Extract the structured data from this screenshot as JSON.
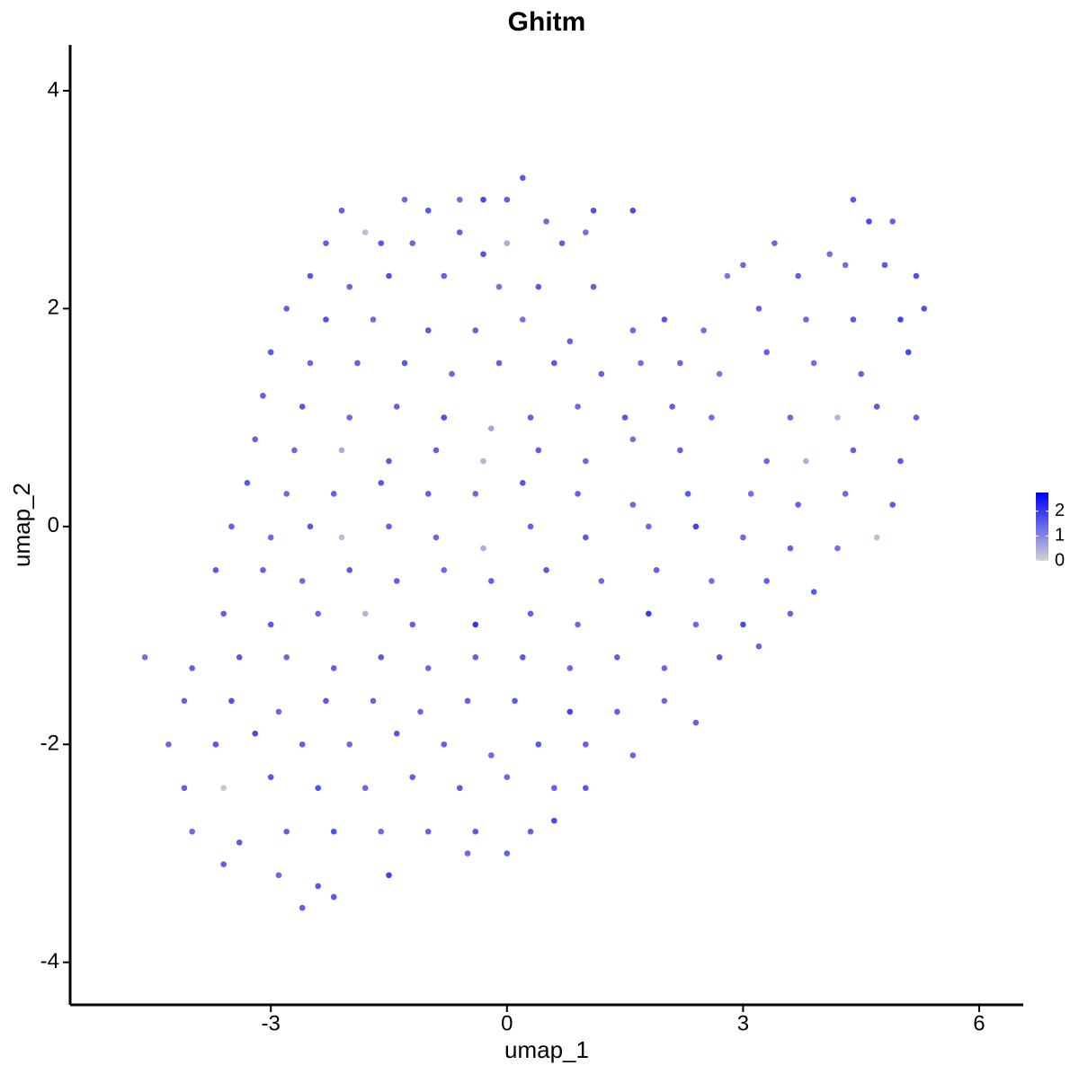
{
  "chart_data": {
    "type": "scatter",
    "title": "Ghitm",
    "x_label": "umap_1",
    "y_label": "umap_2",
    "x": [
      -2.1,
      -1.8,
      -1.3,
      -1.0,
      -0.6,
      -0.3,
      0.0,
      0.2,
      0.5,
      1.1,
      1.6,
      -2.3,
      -1.6,
      -1.2,
      -0.6,
      -0.3,
      0.0,
      0.7,
      1.0,
      4.4,
      4.6,
      4.9,
      3.4,
      4.1,
      -2.5,
      -2.0,
      -1.5,
      -0.8,
      -0.1,
      0.4,
      1.1,
      2.8,
      3.0,
      3.7,
      4.3,
      4.8,
      5.2,
      -2.8,
      -2.3,
      -1.7,
      -1.0,
      -0.4,
      0.2,
      0.8,
      1.6,
      2.0,
      2.5,
      3.2,
      3.8,
      4.4,
      5.0,
      5.3,
      -3.0,
      -2.5,
      -1.9,
      -1.3,
      -0.7,
      -0.1,
      0.6,
      1.2,
      1.7,
      2.2,
      2.7,
      3.3,
      3.9,
      4.5,
      5.1,
      -3.1,
      -2.6,
      -2.0,
      -1.4,
      -0.8,
      -0.2,
      0.3,
      0.9,
      1.5,
      2.1,
      2.6,
      3.6,
      4.2,
      4.7,
      5.2,
      -3.2,
      -2.7,
      -2.1,
      -1.5,
      -0.9,
      -0.3,
      0.4,
      1.0,
      1.6,
      2.2,
      3.3,
      3.8,
      4.4,
      5.0,
      -3.3,
      -2.8,
      -2.2,
      -1.6,
      -1.0,
      -0.4,
      0.2,
      0.9,
      1.6,
      2.3,
      3.1,
      3.7,
      4.3,
      4.9,
      -3.5,
      -3.0,
      -2.5,
      -2.1,
      -1.5,
      -0.9,
      -0.3,
      0.3,
      1.0,
      1.8,
      2.4,
      3.0,
      3.6,
      4.2,
      4.7,
      -3.7,
      -3.1,
      -2.6,
      -2.0,
      -1.4,
      -0.8,
      -0.2,
      0.5,
      1.2,
      1.9,
      2.6,
      3.3,
      3.9,
      -3.6,
      -3.0,
      -2.4,
      -1.8,
      -1.2,
      -0.4,
      0.3,
      0.9,
      1.8,
      2.4,
      3.0,
      3.6,
      -4.6,
      -4.0,
      -3.4,
      -2.8,
      -2.2,
      -1.6,
      -1.0,
      -0.4,
      0.2,
      0.8,
      1.4,
      2.0,
      2.7,
      3.2,
      -4.1,
      -3.5,
      -2.9,
      -2.3,
      -1.7,
      -1.1,
      -0.5,
      0.1,
      0.8,
      1.4,
      2.0,
      2.4,
      -4.3,
      -3.7,
      -3.2,
      -2.6,
      -2.0,
      -1.4,
      -0.8,
      -0.2,
      0.4,
      1.0,
      1.6,
      -4.1,
      -3.6,
      -3.0,
      -2.4,
      -1.8,
      -1.2,
      -0.6,
      0.0,
      0.6,
      1.0,
      -4.0,
      -3.4,
      -2.8,
      -2.2,
      -1.6,
      -1.0,
      -0.4,
      0.3,
      0.6,
      -3.6,
      -2.9,
      -2.4,
      -1.5,
      -0.5,
      0.0,
      -2.6,
      -2.2
    ],
    "y": [
      2.9,
      2.7,
      3.0,
      2.9,
      3.0,
      3.0,
      3.0,
      3.2,
      2.8,
      2.9,
      2.9,
      2.6,
      2.6,
      2.6,
      2.7,
      2.5,
      2.6,
      2.6,
      2.7,
      3.0,
      2.8,
      2.8,
      2.6,
      2.5,
      2.3,
      2.2,
      2.3,
      2.3,
      2.2,
      2.2,
      2.2,
      2.3,
      2.4,
      2.3,
      2.4,
      2.4,
      2.3,
      2.0,
      1.9,
      1.9,
      1.8,
      1.8,
      1.9,
      1.7,
      1.8,
      1.9,
      1.8,
      2.0,
      1.9,
      1.9,
      1.9,
      2.0,
      1.6,
      1.5,
      1.5,
      1.5,
      1.4,
      1.5,
      1.5,
      1.4,
      1.5,
      1.5,
      1.4,
      1.6,
      1.5,
      1.4,
      1.6,
      1.2,
      1.1,
      1.0,
      1.1,
      1.0,
      0.9,
      1.0,
      1.1,
      1.0,
      1.1,
      1.0,
      1.0,
      1.0,
      1.1,
      1.0,
      0.8,
      0.7,
      0.7,
      0.6,
      0.7,
      0.6,
      0.7,
      0.6,
      0.8,
      0.7,
      0.6,
      0.6,
      0.7,
      0.6,
      0.4,
      0.3,
      0.3,
      0.4,
      0.3,
      0.3,
      0.4,
      0.3,
      0.2,
      0.3,
      0.3,
      0.2,
      0.3,
      0.2,
      0.0,
      -0.1,
      0.0,
      -0.1,
      0.0,
      -0.1,
      -0.2,
      0.0,
      -0.1,
      0.0,
      0.0,
      -0.1,
      -0.2,
      -0.2,
      -0.1,
      -0.4,
      -0.4,
      -0.5,
      -0.4,
      -0.5,
      -0.4,
      -0.5,
      -0.4,
      -0.5,
      -0.4,
      -0.5,
      -0.5,
      -0.6,
      -0.8,
      -0.9,
      -0.8,
      -0.8,
      -0.9,
      -0.9,
      -0.8,
      -0.9,
      -0.8,
      -0.9,
      -0.9,
      -0.8,
      -1.2,
      -1.3,
      -1.2,
      -1.2,
      -1.3,
      -1.2,
      -1.3,
      -1.2,
      -1.2,
      -1.3,
      -1.2,
      -1.3,
      -1.2,
      -1.1,
      -1.6,
      -1.6,
      -1.7,
      -1.6,
      -1.6,
      -1.7,
      -1.6,
      -1.6,
      -1.7,
      -1.7,
      -1.6,
      -1.8,
      -2.0,
      -2.0,
      -1.9,
      -2.0,
      -2.0,
      -1.9,
      -2.0,
      -2.1,
      -2.0,
      -2.0,
      -2.1,
      -2.4,
      -2.4,
      -2.3,
      -2.4,
      -2.4,
      -2.3,
      -2.4,
      -2.3,
      -2.4,
      -2.4,
      -2.8,
      -2.9,
      -2.8,
      -2.8,
      -2.8,
      -2.8,
      -2.8,
      -2.8,
      -2.7,
      -3.1,
      -3.2,
      -3.3,
      -3.2,
      -3.0,
      -3.0,
      -3.5,
      -3.4
    ],
    "values": [
      1.5,
      0.3,
      1.4,
      1.6,
      1.3,
      1.8,
      1.5,
      1.6,
      1.4,
      1.7,
      1.8,
      1.5,
      1.6,
      1.4,
      1.5,
      1.7,
      0.5,
      1.5,
      1.3,
      1.6,
      1.8,
      1.5,
      1.4,
      1.3,
      1.6,
      1.4,
      1.7,
      1.5,
      1.3,
      1.6,
      1.5,
      1.2,
      1.4,
      1.5,
      1.3,
      1.6,
      1.7,
      1.5,
      1.7,
      1.4,
      1.6,
      1.5,
      1.3,
      1.5,
      1.4,
      1.6,
      1.3,
      1.5,
      1.4,
      1.6,
      1.9,
      1.7,
      1.6,
      1.4,
      1.5,
      1.6,
      1.4,
      1.5,
      1.6,
      1.5,
      1.3,
      1.4,
      1.2,
      1.5,
      1.3,
      1.5,
      1.8,
      1.5,
      1.6,
      1.4,
      1.5,
      1.7,
      0.6,
      1.5,
      1.4,
      1.6,
      1.5,
      1.3,
      1.4,
      0.4,
      1.6,
      1.5,
      1.5,
      1.4,
      0.5,
      1.6,
      1.5,
      0.4,
      1.5,
      1.4,
      1.3,
      1.5,
      1.4,
      0.5,
      1.5,
      1.6,
      1.6,
      1.4,
      1.5,
      1.6,
      1.5,
      1.4,
      1.6,
      1.5,
      1.4,
      1.6,
      1.3,
      1.5,
      1.4,
      1.6,
      1.5,
      1.4,
      1.6,
      0.3,
      1.5,
      1.4,
      0.5,
      1.5,
      1.6,
      1.4,
      1.9,
      1.4,
      1.5,
      1.3,
      0.3,
      1.6,
      1.5,
      1.4,
      1.6,
      1.5,
      1.4,
      1.5,
      1.6,
      1.4,
      1.5,
      1.3,
      1.5,
      1.6,
      1.5,
      1.6,
      1.4,
      0.4,
      1.5,
      2.1,
      1.5,
      1.4,
      2.0,
      1.4,
      1.8,
      1.5,
      1.3,
      1.5,
      1.6,
      1.4,
      1.5,
      1.6,
      1.4,
      1.5,
      1.6,
      1.4,
      1.5,
      1.4,
      1.6,
      1.5,
      1.5,
      1.7,
      1.4,
      1.6,
      1.5,
      1.4,
      1.5,
      1.6,
      1.9,
      1.5,
      1.4,
      1.5,
      1.4,
      1.6,
      1.8,
      1.5,
      1.4,
      1.6,
      1.5,
      1.4,
      1.6,
      1.5,
      1.4,
      1.5,
      0.2,
      1.6,
      1.7,
      1.4,
      1.5,
      1.6,
      1.4,
      1.5,
      1.6,
      1.4,
      1.6,
      1.5,
      1.7,
      1.4,
      1.5,
      1.6,
      1.5,
      1.8,
      1.5,
      1.4,
      1.6,
      1.9,
      1.4,
      1.5,
      1.5,
      1.6
    ],
    "xlim": [
      -5.55,
      6.56
    ],
    "ylim": [
      -4.39,
      4.42
    ],
    "xticks": [
      -3,
      0,
      3,
      6
    ],
    "yticks": [
      -4,
      -2,
      0,
      2,
      4
    ],
    "colorbar": {
      "lim": [
        0,
        2.75
      ],
      "ticks": [
        0,
        1,
        2
      ],
      "low": "#d3d3d3",
      "high": "#0000ff"
    }
  }
}
